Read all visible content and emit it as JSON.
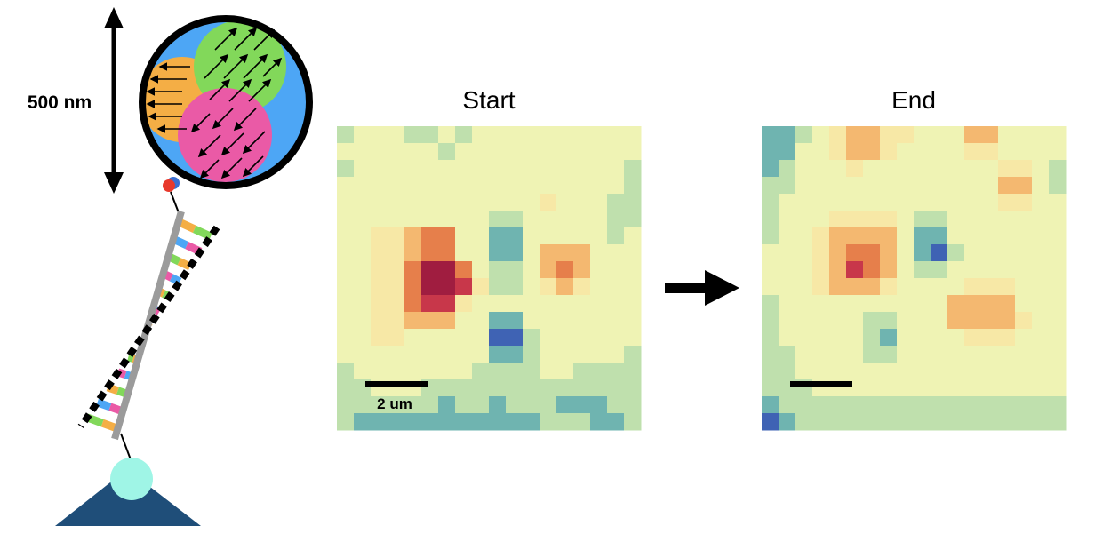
{
  "size_label": "500 nm",
  "panels": [
    {
      "title": "Start",
      "scalebar_label": "2 um"
    },
    {
      "title": "End",
      "scalebar_label": ""
    }
  ],
  "colors": {
    "bead_fill": "#4da6f5",
    "domain_orange": "#f4ae45",
    "domain_green": "#82d85a",
    "domain_pink": "#ea5aa6",
    "anchor_base": "#1f4e79",
    "anchor_ball": "#9ff5e6",
    "tag_red": "#e8392c",
    "tag_blue": "#3a6fd1",
    "rail_gray": "#9b9b9b",
    "base_colors": [
      "#f4ae45",
      "#4da6f5",
      "#82d85a",
      "#ea5aa6"
    ]
  },
  "heatmap_palette": [
    "#3f63b4",
    "#6fb4b0",
    "#bfe0ad",
    "#eff3b4",
    "#f7e8a6",
    "#f4b870",
    "#e67f4b",
    "#c8374a",
    "#a01d40"
  ],
  "heatmaps": [
    {
      "name": "start",
      "rows": [
        [
          2,
          3,
          3,
          3,
          2,
          2,
          3,
          2,
          3,
          3,
          3,
          3,
          3,
          3,
          3,
          3,
          3,
          3
        ],
        [
          3,
          3,
          3,
          3,
          3,
          3,
          2,
          3,
          3,
          3,
          3,
          3,
          3,
          3,
          3,
          3,
          3,
          3
        ],
        [
          2,
          3,
          3,
          3,
          3,
          3,
          3,
          3,
          3,
          3,
          3,
          3,
          3,
          3,
          3,
          3,
          3,
          2
        ],
        [
          3,
          3,
          3,
          3,
          3,
          3,
          3,
          3,
          3,
          3,
          3,
          3,
          3,
          3,
          3,
          3,
          3,
          2
        ],
        [
          3,
          3,
          3,
          3,
          3,
          3,
          3,
          3,
          3,
          3,
          3,
          3,
          4,
          3,
          3,
          3,
          2,
          2
        ],
        [
          3,
          3,
          3,
          3,
          3,
          3,
          3,
          3,
          3,
          2,
          2,
          3,
          3,
          3,
          3,
          3,
          2,
          2
        ],
        [
          3,
          3,
          4,
          4,
          5,
          6,
          6,
          3,
          3,
          1,
          1,
          3,
          3,
          3,
          3,
          3,
          2,
          3
        ],
        [
          3,
          3,
          4,
          4,
          5,
          6,
          6,
          3,
          3,
          1,
          1,
          3,
          5,
          5,
          5,
          3,
          3,
          3
        ],
        [
          3,
          3,
          4,
          4,
          6,
          8,
          8,
          6,
          3,
          2,
          2,
          3,
          5,
          6,
          5,
          3,
          3,
          3
        ],
        [
          3,
          3,
          4,
          4,
          6,
          8,
          8,
          7,
          4,
          2,
          2,
          3,
          4,
          5,
          4,
          3,
          3,
          3
        ],
        [
          3,
          3,
          4,
          4,
          6,
          7,
          7,
          4,
          3,
          3,
          3,
          3,
          3,
          3,
          3,
          3,
          3,
          3
        ],
        [
          3,
          3,
          4,
          4,
          5,
          5,
          5,
          3,
          3,
          1,
          1,
          3,
          3,
          3,
          3,
          3,
          3,
          3
        ],
        [
          3,
          3,
          4,
          4,
          3,
          3,
          3,
          3,
          3,
          0,
          0,
          2,
          3,
          3,
          3,
          3,
          3,
          3
        ],
        [
          3,
          3,
          3,
          3,
          3,
          3,
          3,
          3,
          3,
          1,
          1,
          2,
          3,
          3,
          3,
          3,
          3,
          2
        ],
        [
          2,
          3,
          3,
          3,
          3,
          3,
          3,
          3,
          2,
          2,
          2,
          2,
          3,
          3,
          2,
          2,
          2,
          2
        ],
        [
          2,
          2,
          3,
          3,
          3,
          2,
          2,
          2,
          2,
          2,
          2,
          2,
          2,
          2,
          2,
          2,
          2,
          2
        ],
        [
          2,
          2,
          2,
          2,
          2,
          2,
          1,
          2,
          2,
          1,
          2,
          2,
          2,
          1,
          1,
          1,
          2,
          2
        ],
        [
          2,
          1,
          1,
          1,
          1,
          1,
          1,
          1,
          1,
          1,
          1,
          1,
          2,
          2,
          2,
          1,
          1,
          2
        ]
      ]
    },
    {
      "name": "end",
      "rows": [
        [
          1,
          1,
          2,
          3,
          4,
          5,
          5,
          4,
          4,
          3,
          3,
          3,
          5,
          5,
          3,
          3,
          3,
          3
        ],
        [
          1,
          1,
          3,
          3,
          4,
          5,
          5,
          4,
          3,
          3,
          3,
          3,
          4,
          4,
          3,
          3,
          3,
          3
        ],
        [
          1,
          2,
          3,
          3,
          3,
          4,
          3,
          3,
          3,
          3,
          3,
          3,
          3,
          3,
          4,
          4,
          3,
          2
        ],
        [
          2,
          2,
          3,
          3,
          3,
          3,
          3,
          3,
          3,
          3,
          3,
          3,
          3,
          3,
          5,
          5,
          3,
          2
        ],
        [
          2,
          3,
          3,
          3,
          3,
          3,
          3,
          3,
          3,
          3,
          3,
          3,
          3,
          3,
          4,
          4,
          3,
          3
        ],
        [
          2,
          3,
          3,
          3,
          4,
          4,
          4,
          4,
          3,
          2,
          2,
          3,
          3,
          3,
          3,
          3,
          3,
          3
        ],
        [
          2,
          3,
          3,
          4,
          5,
          5,
          5,
          5,
          3,
          1,
          1,
          3,
          3,
          3,
          3,
          3,
          3,
          3
        ],
        [
          3,
          3,
          3,
          4,
          5,
          6,
          6,
          5,
          3,
          1,
          0,
          2,
          3,
          3,
          3,
          3,
          3,
          3
        ],
        [
          3,
          3,
          3,
          4,
          5,
          7,
          6,
          5,
          3,
          2,
          2,
          3,
          3,
          3,
          3,
          3,
          3,
          3
        ],
        [
          3,
          3,
          3,
          4,
          5,
          5,
          5,
          4,
          3,
          3,
          3,
          3,
          4,
          4,
          4,
          3,
          3,
          3
        ],
        [
          2,
          3,
          3,
          3,
          3,
          3,
          3,
          3,
          3,
          3,
          3,
          5,
          5,
          5,
          5,
          3,
          3,
          3
        ],
        [
          2,
          3,
          3,
          3,
          3,
          3,
          2,
          2,
          3,
          3,
          3,
          5,
          5,
          5,
          5,
          4,
          3,
          3
        ],
        [
          2,
          3,
          3,
          3,
          3,
          3,
          2,
          1,
          3,
          3,
          3,
          3,
          4,
          4,
          4,
          3,
          3,
          3
        ],
        [
          2,
          2,
          3,
          3,
          3,
          3,
          2,
          2,
          3,
          3,
          3,
          3,
          3,
          3,
          3,
          3,
          3,
          3
        ],
        [
          2,
          2,
          3,
          3,
          3,
          3,
          3,
          3,
          3,
          3,
          3,
          3,
          3,
          3,
          3,
          3,
          3,
          3
        ],
        [
          2,
          2,
          2,
          3,
          3,
          3,
          3,
          3,
          3,
          3,
          3,
          3,
          3,
          3,
          3,
          3,
          3,
          3
        ],
        [
          1,
          2,
          2,
          2,
          2,
          2,
          2,
          2,
          2,
          2,
          2,
          2,
          2,
          2,
          2,
          2,
          2,
          2
        ],
        [
          0,
          1,
          2,
          2,
          2,
          2,
          2,
          2,
          2,
          2,
          2,
          2,
          2,
          2,
          2,
          2,
          2,
          2
        ]
      ]
    }
  ]
}
